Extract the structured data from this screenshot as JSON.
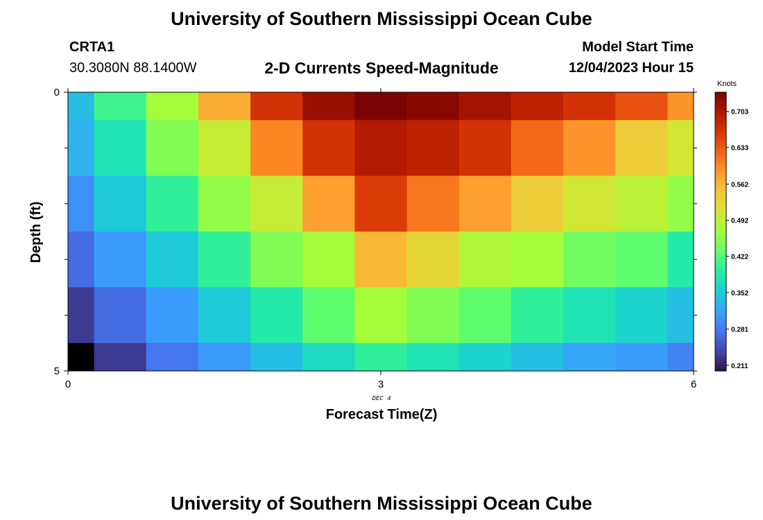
{
  "header": {
    "title_top": "University of Southern Mississippi Ocean Cube",
    "station": "CRTA1",
    "location": "30.3080N  88.1400W",
    "chart_title": "2-D Currents Speed-Magnitude",
    "model_label": "Model Start Time",
    "model_time": "12/04/2023 Hour 15",
    "title_bottom": "University of Southern Mississippi Ocean Cube"
  },
  "chart_data": {
    "type": "heatmap",
    "title": "2-D Currents Speed-Magnitude",
    "xlabel": "Forecast Time(Z)",
    "ylabel": "Depth (ft)",
    "x_date_label": "DEC 4",
    "xlim": [
      0,
      6
    ],
    "ylim": [
      0,
      5
    ],
    "x_ticks": [
      "0",
      "3",
      "6"
    ],
    "y_ticks": [
      "0",
      "5"
    ],
    "x_edges": [
      0,
      0.25,
      0.75,
      1.25,
      1.75,
      2.25,
      2.75,
      3.25,
      3.75,
      4.25,
      4.75,
      5.25,
      5.75,
      6
    ],
    "y_edges": [
      0,
      0.5,
      1.5,
      2.5,
      3.5,
      4.5,
      5
    ],
    "values": [
      [
        0.34,
        0.41,
        0.47,
        0.57,
        0.67,
        0.72,
        0.75,
        0.73,
        0.71,
        0.69,
        0.67,
        0.64,
        0.59
      ],
      [
        0.33,
        0.38,
        0.45,
        0.5,
        0.6,
        0.67,
        0.7,
        0.69,
        0.67,
        0.62,
        0.59,
        0.54,
        0.51
      ],
      [
        0.3,
        0.35,
        0.4,
        0.46,
        0.5,
        0.58,
        0.66,
        0.61,
        0.58,
        0.54,
        0.51,
        0.49,
        0.46
      ],
      [
        0.27,
        0.31,
        0.35,
        0.4,
        0.45,
        0.47,
        0.56,
        0.53,
        0.48,
        0.47,
        0.44,
        0.43,
        0.39
      ],
      [
        0.23,
        0.27,
        0.31,
        0.35,
        0.39,
        0.43,
        0.47,
        0.45,
        0.43,
        0.4,
        0.38,
        0.36,
        0.34
      ],
      [
        0.0,
        0.23,
        0.28,
        0.31,
        0.34,
        0.37,
        0.4,
        0.38,
        0.36,
        0.34,
        0.32,
        0.31,
        0.29
      ]
    ],
    "colorbar": {
      "label": "Knots",
      "min": 0.2,
      "max": 0.74,
      "ticks": [
        "0.211",
        "0.281",
        "0.352",
        "0.422",
        "0.492",
        "0.562",
        "0.633",
        "0.703"
      ]
    },
    "colormap": [
      "#30123b",
      "#4145ab",
      "#4675ed",
      "#39a2fc",
      "#1bcfd4",
      "#24eca6",
      "#61fc6c",
      "#a4fc3b",
      "#d1e834",
      "#f3c63a",
      "#fe9b2d",
      "#f36315",
      "#d93806",
      "#b11901",
      "#7a0402"
    ]
  }
}
